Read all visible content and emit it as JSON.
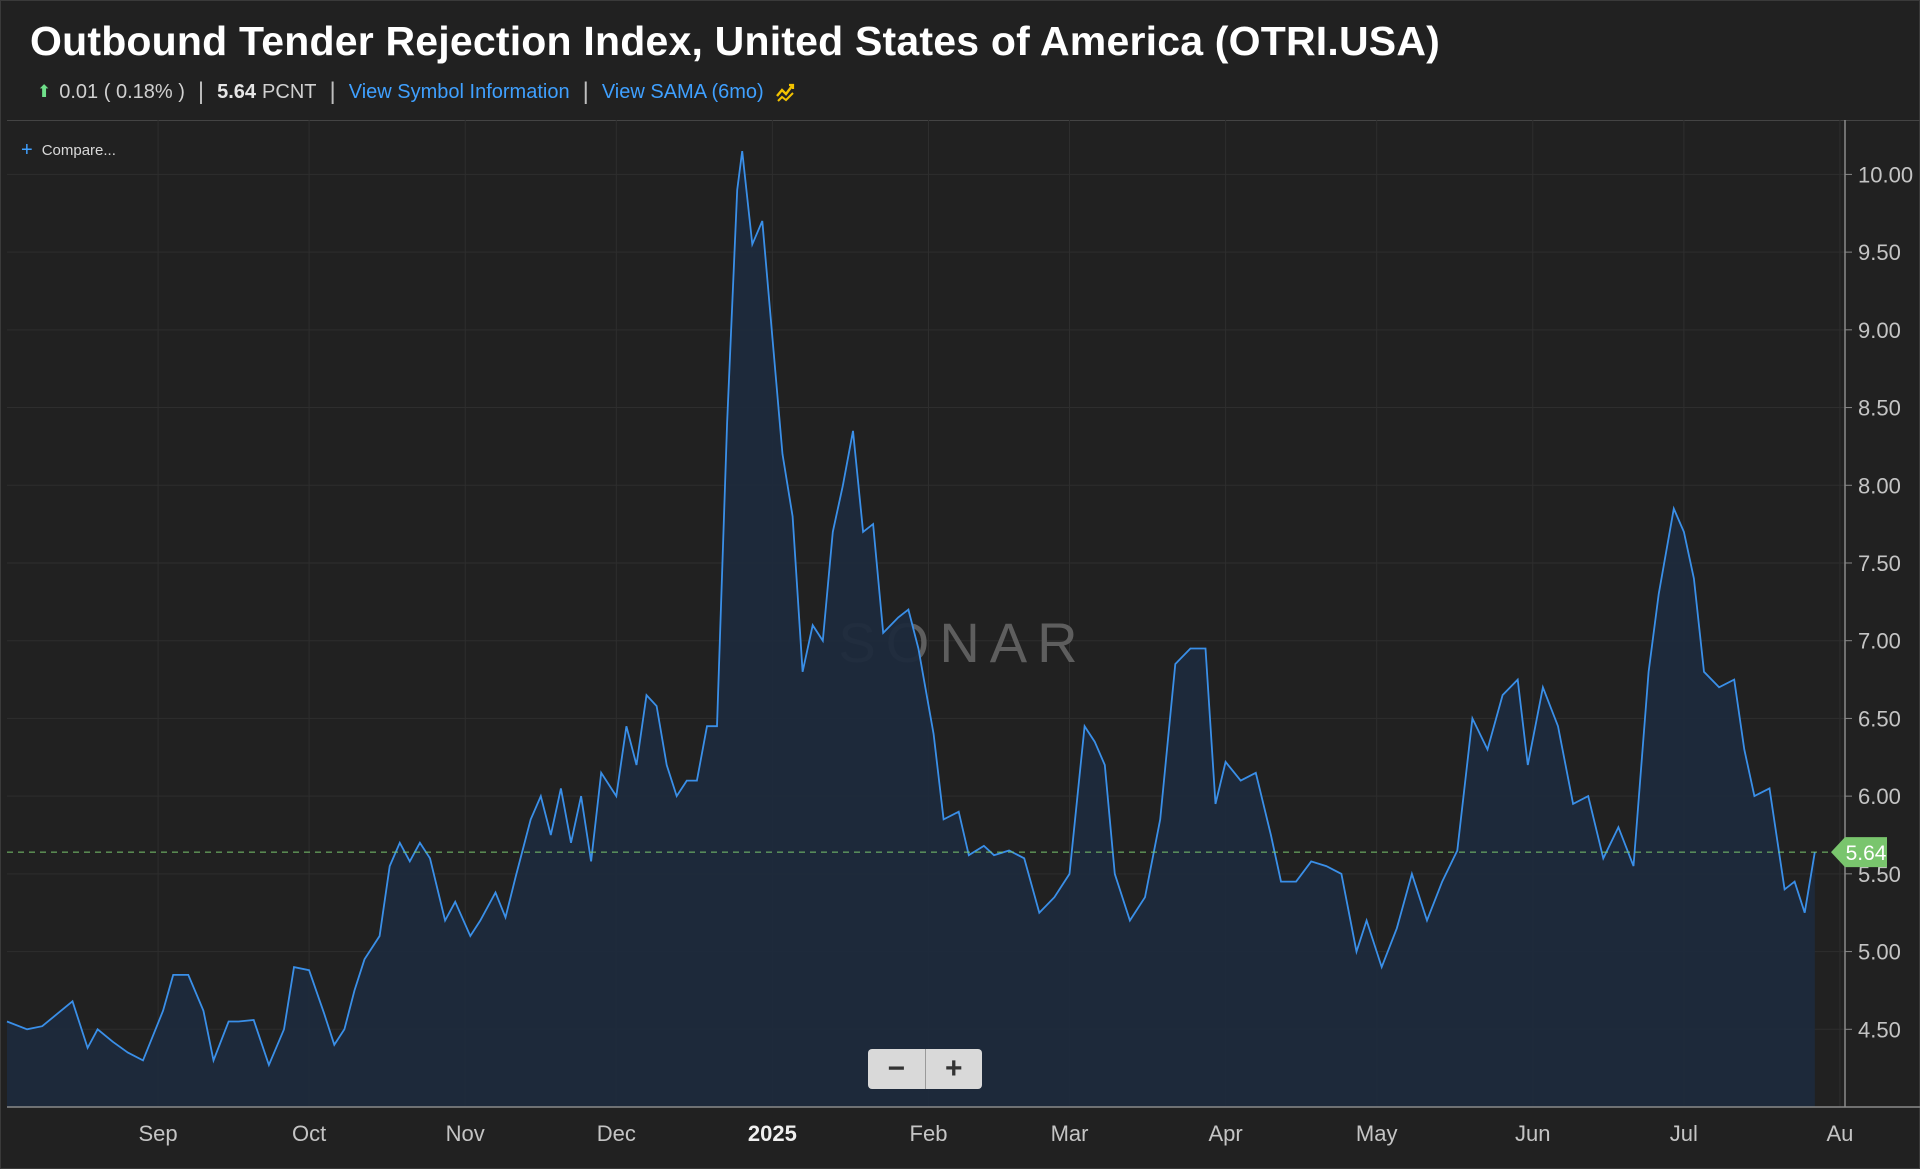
{
  "header": {
    "title": "Outbound Tender Rejection Index, United States of America (OTRI.USA)",
    "change": "0.01 ( 0.18% )",
    "last_value": "5.64",
    "unit": "PCNT",
    "symbol_info_link": "View Symbol Information",
    "sama_link": "View SAMA (6mo)",
    "change_direction": "up",
    "up_color": "#6fe08a",
    "link_color": "#3fa0ff"
  },
  "compare_label": "Compare...",
  "watermark": "SONAR",
  "zoom": {
    "minus": "−",
    "plus": "+"
  },
  "colors": {
    "line": "#3a8fe8",
    "fill": "#1d2a3c",
    "last_marker": "#79c56d",
    "background": "#212121"
  },
  "chart_data": {
    "type": "area",
    "title": "Outbound Tender Rejection Index, United States of America (OTRI.USA)",
    "xlabel": "",
    "ylabel": "",
    "unit": "PCNT",
    "ylim": [
      4.0,
      10.35
    ],
    "y_ticks": [
      "10.00",
      "9.50",
      "9.00",
      "8.50",
      "8.00",
      "7.50",
      "7.00",
      "6.50",
      "6.00",
      "5.50",
      "5.00",
      "4.50"
    ],
    "x_ticks": [
      "Sep",
      "Oct",
      "Nov",
      "Dec",
      "2025",
      "Feb",
      "Mar",
      "Apr",
      "May",
      "Jun",
      "Jul",
      "Au"
    ],
    "grid": true,
    "last_value_marker": "5.64",
    "series": [
      {
        "values": [
          [
            "2024-08-02",
            4.55
          ],
          [
            "2024-08-06",
            4.5
          ],
          [
            "2024-08-09",
            4.52
          ],
          [
            "2024-08-12",
            4.6
          ],
          [
            "2024-08-15",
            4.68
          ],
          [
            "2024-08-18",
            4.38
          ],
          [
            "2024-08-20",
            4.5
          ],
          [
            "2024-08-23",
            4.42
          ],
          [
            "2024-08-26",
            4.35
          ],
          [
            "2024-08-29",
            4.3
          ],
          [
            "2024-09-02",
            4.62
          ],
          [
            "2024-09-04",
            4.85
          ],
          [
            "2024-09-07",
            4.85
          ],
          [
            "2024-09-10",
            4.62
          ],
          [
            "2024-09-12",
            4.3
          ],
          [
            "2024-09-15",
            4.55
          ],
          [
            "2024-09-17",
            4.55
          ],
          [
            "2024-09-20",
            4.56
          ],
          [
            "2024-09-23",
            4.27
          ],
          [
            "2024-09-26",
            4.5
          ],
          [
            "2024-09-28",
            4.9
          ],
          [
            "2024-10-01",
            4.88
          ],
          [
            "2024-10-04",
            4.6
          ],
          [
            "2024-10-06",
            4.4
          ],
          [
            "2024-10-08",
            4.5
          ],
          [
            "2024-10-10",
            4.75
          ],
          [
            "2024-10-12",
            4.95
          ],
          [
            "2024-10-15",
            5.1
          ],
          [
            "2024-10-17",
            5.55
          ],
          [
            "2024-10-19",
            5.7
          ],
          [
            "2024-10-21",
            5.58
          ],
          [
            "2024-10-23",
            5.7
          ],
          [
            "2024-10-25",
            5.6
          ],
          [
            "2024-10-28",
            5.2
          ],
          [
            "2024-10-30",
            5.32
          ],
          [
            "2024-11-02",
            5.1
          ],
          [
            "2024-11-04",
            5.2
          ],
          [
            "2024-11-07",
            5.38
          ],
          [
            "2024-11-09",
            5.22
          ],
          [
            "2024-11-11",
            5.48
          ],
          [
            "2024-11-14",
            5.85
          ],
          [
            "2024-11-16",
            6.0
          ],
          [
            "2024-11-18",
            5.75
          ],
          [
            "2024-11-20",
            6.05
          ],
          [
            "2024-11-22",
            5.7
          ],
          [
            "2024-11-24",
            6.0
          ],
          [
            "2024-11-26",
            5.58
          ],
          [
            "2024-11-28",
            6.15
          ],
          [
            "2024-12-01",
            6.0
          ],
          [
            "2024-12-03",
            6.45
          ],
          [
            "2024-12-05",
            6.2
          ],
          [
            "2024-12-07",
            6.65
          ],
          [
            "2024-12-09",
            6.58
          ],
          [
            "2024-12-11",
            6.2
          ],
          [
            "2024-12-13",
            6.0
          ],
          [
            "2024-12-15",
            6.1
          ],
          [
            "2024-12-17",
            6.1
          ],
          [
            "2024-12-19",
            6.45
          ],
          [
            "2024-12-21",
            6.45
          ],
          [
            "2024-12-23",
            8.4
          ],
          [
            "2024-12-25",
            9.9
          ],
          [
            "2024-12-26",
            10.15
          ],
          [
            "2024-12-28",
            9.55
          ],
          [
            "2024-12-30",
            9.7
          ],
          [
            "2025-01-01",
            8.95
          ],
          [
            "2025-01-03",
            8.2
          ],
          [
            "2025-01-05",
            7.8
          ],
          [
            "2025-01-07",
            6.8
          ],
          [
            "2025-01-09",
            7.1
          ],
          [
            "2025-01-11",
            7.0
          ],
          [
            "2025-01-13",
            7.7
          ],
          [
            "2025-01-15",
            8.0
          ],
          [
            "2025-01-17",
            8.35
          ],
          [
            "2025-01-19",
            7.7
          ],
          [
            "2025-01-21",
            7.75
          ],
          [
            "2025-01-23",
            7.05
          ],
          [
            "2025-01-26",
            7.15
          ],
          [
            "2025-01-28",
            7.2
          ],
          [
            "2025-01-30",
            6.95
          ],
          [
            "2025-02-02",
            6.4
          ],
          [
            "2025-02-04",
            5.85
          ],
          [
            "2025-02-07",
            5.9
          ],
          [
            "2025-02-09",
            5.62
          ],
          [
            "2025-02-12",
            5.68
          ],
          [
            "2025-02-14",
            5.62
          ],
          [
            "2025-02-17",
            5.65
          ],
          [
            "2025-02-20",
            5.6
          ],
          [
            "2025-02-23",
            5.25
          ],
          [
            "2025-02-26",
            5.35
          ],
          [
            "2025-03-01",
            5.5
          ],
          [
            "2025-03-04",
            6.45
          ],
          [
            "2025-03-06",
            6.35
          ],
          [
            "2025-03-08",
            6.2
          ],
          [
            "2025-03-10",
            5.5
          ],
          [
            "2025-03-13",
            5.2
          ],
          [
            "2025-03-16",
            5.35
          ],
          [
            "2025-03-19",
            5.85
          ],
          [
            "2025-03-22",
            6.85
          ],
          [
            "2025-03-25",
            6.95
          ],
          [
            "2025-03-28",
            6.95
          ],
          [
            "2025-03-30",
            5.95
          ],
          [
            "2025-04-01",
            6.22
          ],
          [
            "2025-04-04",
            6.1
          ],
          [
            "2025-04-07",
            6.15
          ],
          [
            "2025-04-10",
            5.75
          ],
          [
            "2025-04-12",
            5.45
          ],
          [
            "2025-04-15",
            5.45
          ],
          [
            "2025-04-18",
            5.58
          ],
          [
            "2025-04-21",
            5.55
          ],
          [
            "2025-04-24",
            5.5
          ],
          [
            "2025-04-27",
            5.0
          ],
          [
            "2025-04-29",
            5.2
          ],
          [
            "2025-05-02",
            4.9
          ],
          [
            "2025-05-05",
            5.15
          ],
          [
            "2025-05-08",
            5.5
          ],
          [
            "2025-05-11",
            5.2
          ],
          [
            "2025-05-14",
            5.45
          ],
          [
            "2025-05-17",
            5.65
          ],
          [
            "2025-05-20",
            6.5
          ],
          [
            "2025-05-23",
            6.3
          ],
          [
            "2025-05-26",
            6.65
          ],
          [
            "2025-05-29",
            6.75
          ],
          [
            "2025-05-31",
            6.2
          ],
          [
            "2025-06-03",
            6.7
          ],
          [
            "2025-06-06",
            6.45
          ],
          [
            "2025-06-09",
            5.95
          ],
          [
            "2025-06-12",
            6.0
          ],
          [
            "2025-06-15",
            5.6
          ],
          [
            "2025-06-18",
            5.8
          ],
          [
            "2025-06-21",
            5.55
          ],
          [
            "2025-06-24",
            6.8
          ],
          [
            "2025-06-26",
            7.3
          ],
          [
            "2025-06-29",
            7.85
          ],
          [
            "2025-07-01",
            7.7
          ],
          [
            "2025-07-03",
            7.4
          ],
          [
            "2025-07-05",
            6.8
          ],
          [
            "2025-07-08",
            6.7
          ],
          [
            "2025-07-11",
            6.75
          ],
          [
            "2025-07-13",
            6.3
          ],
          [
            "2025-07-15",
            6.0
          ],
          [
            "2025-07-18",
            6.05
          ],
          [
            "2025-07-21",
            5.4
          ],
          [
            "2025-07-23",
            5.45
          ],
          [
            "2025-07-25",
            5.25
          ],
          [
            "2025-07-27",
            5.64
          ]
        ]
      }
    ]
  }
}
